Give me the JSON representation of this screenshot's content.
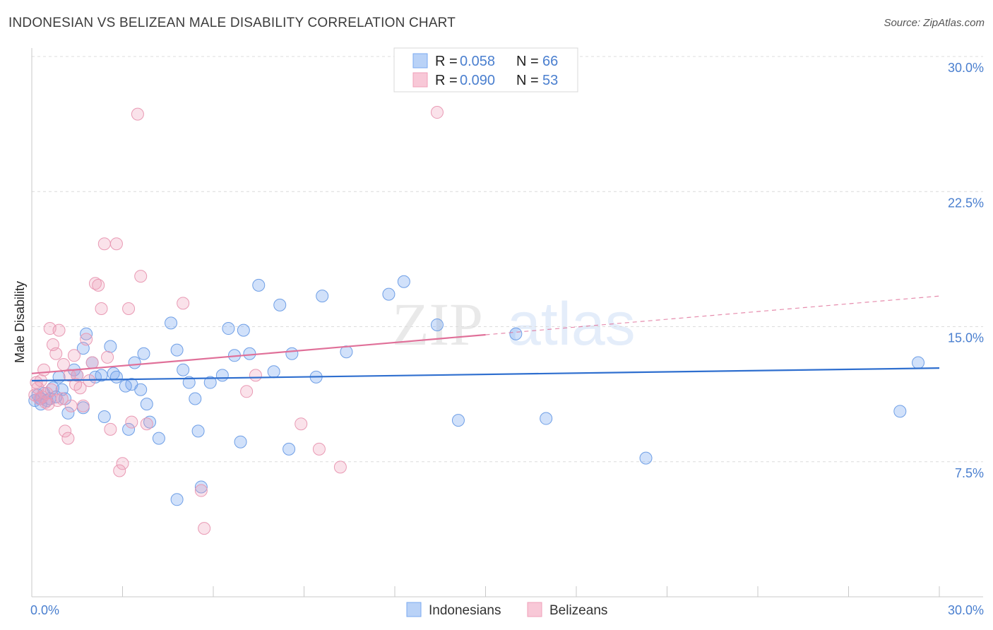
{
  "title": "INDONESIAN VS BELIZEAN MALE DISABILITY CORRELATION CHART",
  "source": "Source: ZipAtlas.com",
  "watermark": {
    "zip": "ZIP",
    "atlas": "atlas"
  },
  "colors": {
    "blue": "#7aaaf0",
    "blue_line": "#2f6fcf",
    "pink": "#f0a0ba",
    "pink_line": "#e07099",
    "tick": "#4a7fcf"
  },
  "legend": {
    "r_label": "R =",
    "n_label": "N =",
    "rows": [
      {
        "series": "Indonesians",
        "r": "0.058",
        "n": "66"
      },
      {
        "series": "Belizeans",
        "r": "0.090",
        "n": "53"
      }
    ]
  },
  "chart_data": {
    "type": "scatter",
    "title": "INDONESIAN VS BELIZEAN MALE DISABILITY CORRELATION CHART",
    "xlabel": "",
    "ylabel": "Male Disability",
    "xlim": [
      0,
      30
    ],
    "ylim": [
      0,
      30
    ],
    "x_tick_labels": [
      "0.0%",
      "30.0%"
    ],
    "y_ticks": [
      7.5,
      15.0,
      22.5,
      30.0
    ],
    "y_tick_labels": [
      "7.5%",
      "15.0%",
      "22.5%",
      "30.0%"
    ],
    "grid": true,
    "legend_position": "top-center",
    "series": [
      {
        "name": "Indonesians",
        "trend": {
          "x0": 0,
          "y0": 12.0,
          "x1": 30,
          "y1": 12.7,
          "dash_from": null
        },
        "points": [
          [
            0.1,
            10.9
          ],
          [
            0.2,
            11.2
          ],
          [
            0.3,
            11.0
          ],
          [
            0.4,
            11.3
          ],
          [
            0.5,
            10.9
          ],
          [
            0.6,
            11.0
          ],
          [
            0.7,
            11.6
          ],
          [
            0.8,
            11.1
          ],
          [
            0.9,
            12.2
          ],
          [
            1.0,
            11.5
          ],
          [
            1.1,
            11.0
          ],
          [
            1.2,
            10.2
          ],
          [
            1.4,
            12.6
          ],
          [
            1.5,
            12.3
          ],
          [
            1.8,
            14.6
          ],
          [
            1.7,
            13.8
          ],
          [
            2.0,
            13.0
          ],
          [
            2.1,
            12.2
          ],
          [
            2.6,
            13.9
          ],
          [
            2.7,
            12.4
          ],
          [
            2.3,
            12.3
          ],
          [
            2.8,
            12.2
          ],
          [
            3.3,
            11.8
          ],
          [
            3.1,
            11.7
          ],
          [
            3.4,
            13.0
          ],
          [
            3.6,
            11.5
          ],
          [
            3.7,
            13.5
          ],
          [
            3.8,
            10.7
          ],
          [
            3.9,
            9.7
          ],
          [
            4.2,
            8.8
          ],
          [
            4.6,
            15.2
          ],
          [
            4.8,
            13.7
          ],
          [
            5.0,
            12.6
          ],
          [
            5.2,
            11.9
          ],
          [
            5.4,
            11.0
          ],
          [
            5.5,
            9.2
          ],
          [
            5.6,
            6.1
          ],
          [
            5.9,
            11.9
          ],
          [
            6.3,
            12.3
          ],
          [
            6.5,
            14.9
          ],
          [
            6.7,
            13.4
          ],
          [
            7.0,
            14.8
          ],
          [
            7.2,
            13.5
          ],
          [
            7.5,
            17.3
          ],
          [
            8.0,
            12.5
          ],
          [
            8.2,
            16.2
          ],
          [
            8.5,
            8.2
          ],
          [
            8.6,
            13.5
          ],
          [
            9.4,
            12.2
          ],
          [
            9.6,
            16.7
          ],
          [
            10.4,
            13.6
          ],
          [
            11.8,
            16.8
          ],
          [
            12.3,
            17.5
          ],
          [
            13.4,
            15.1
          ],
          [
            14.1,
            9.8
          ],
          [
            16.0,
            14.6
          ],
          [
            17.0,
            9.9
          ],
          [
            20.3,
            7.7
          ],
          [
            28.7,
            10.3
          ],
          [
            29.3,
            13.0
          ],
          [
            0.3,
            10.7
          ],
          [
            1.7,
            10.5
          ],
          [
            3.2,
            9.3
          ],
          [
            6.9,
            8.6
          ],
          [
            4.8,
            5.4
          ],
          [
            2.4,
            10.0
          ]
        ]
      },
      {
        "name": "Belizeans",
        "trend": {
          "x0": 0,
          "y0": 12.4,
          "x1": 30,
          "y1": 16.7,
          "dash_from": 15.0
        },
        "points": [
          [
            0.1,
            11.2
          ],
          [
            0.2,
            11.6
          ],
          [
            0.3,
            12.0
          ],
          [
            0.4,
            12.6
          ],
          [
            0.5,
            11.3
          ],
          [
            0.6,
            14.9
          ],
          [
            0.7,
            14.0
          ],
          [
            0.8,
            13.5
          ],
          [
            0.9,
            14.8
          ],
          [
            1.0,
            11.0
          ],
          [
            1.1,
            9.2
          ],
          [
            1.2,
            8.8
          ],
          [
            1.3,
            10.6
          ],
          [
            1.4,
            13.4
          ],
          [
            1.5,
            12.3
          ],
          [
            1.6,
            11.6
          ],
          [
            1.7,
            10.6
          ],
          [
            1.8,
            14.3
          ],
          [
            1.9,
            12.0
          ],
          [
            2.0,
            13.0
          ],
          [
            2.1,
            17.4
          ],
          [
            2.2,
            17.3
          ],
          [
            2.3,
            16.0
          ],
          [
            2.4,
            19.6
          ],
          [
            2.5,
            13.3
          ],
          [
            2.6,
            9.3
          ],
          [
            2.8,
            19.6
          ],
          [
            2.9,
            7.0
          ],
          [
            3.0,
            7.4
          ],
          [
            3.2,
            16.0
          ],
          [
            3.3,
            9.7
          ],
          [
            3.5,
            26.8
          ],
          [
            3.6,
            17.8
          ],
          [
            3.8,
            9.6
          ],
          [
            5.0,
            16.3
          ],
          [
            5.6,
            5.9
          ],
          [
            5.7,
            3.8
          ],
          [
            7.1,
            11.4
          ],
          [
            7.4,
            12.3
          ],
          [
            8.9,
            9.6
          ],
          [
            9.5,
            8.2
          ],
          [
            10.2,
            7.2
          ],
          [
            13.4,
            26.9
          ],
          [
            0.25,
            11.0
          ],
          [
            0.45,
            10.8
          ],
          [
            0.65,
            11.5
          ],
          [
            0.85,
            10.9
          ],
          [
            1.05,
            12.9
          ],
          [
            1.25,
            12.3
          ],
          [
            1.45,
            11.8
          ],
          [
            0.15,
            11.9
          ],
          [
            0.35,
            11.1
          ],
          [
            0.55,
            10.7
          ]
        ]
      }
    ]
  },
  "bottom_legend": [
    "Indonesians",
    "Belizeans"
  ]
}
